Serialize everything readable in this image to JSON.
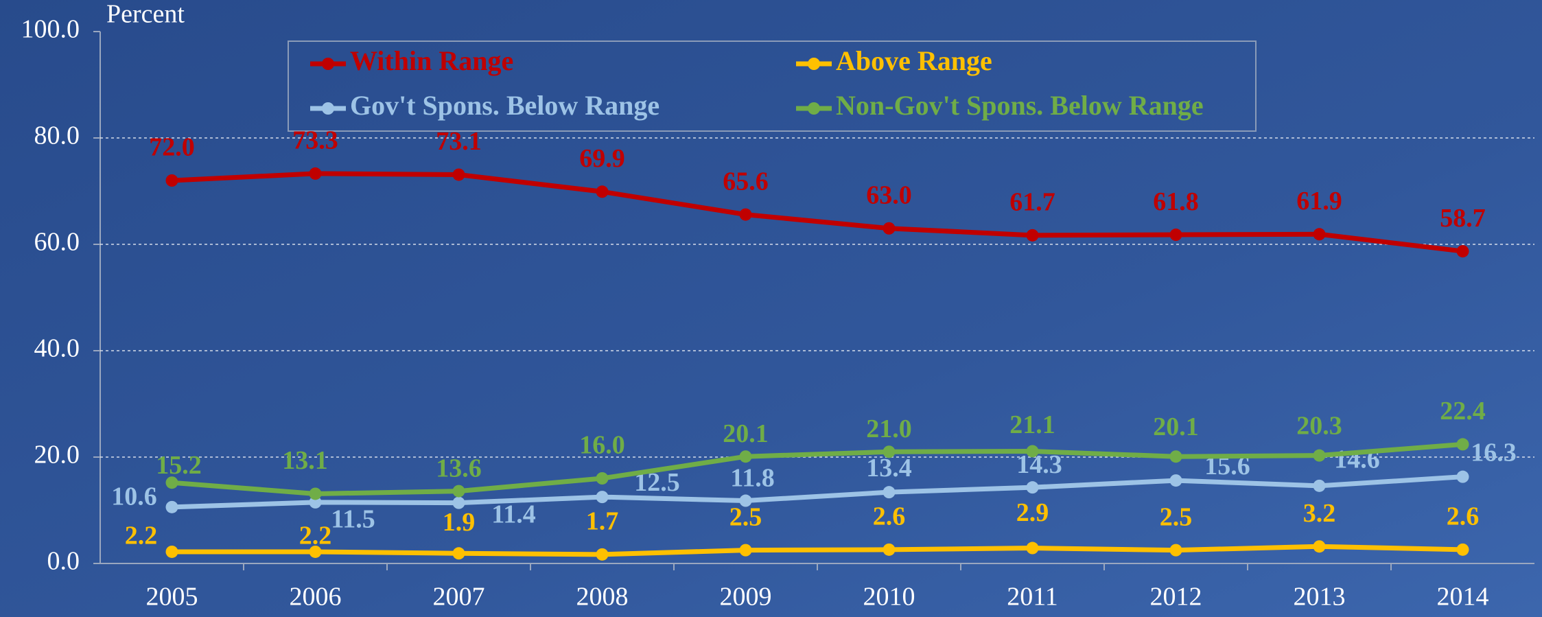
{
  "chart_data": {
    "type": "line",
    "y_axis_label": "Percent",
    "categories": [
      "2005",
      "2006",
      "2007",
      "2008",
      "2009",
      "2010",
      "2011",
      "2012",
      "2013",
      "2014"
    ],
    "series": [
      {
        "name": "Within Range",
        "color": "#c00000",
        "values": [
          72.0,
          73.3,
          73.1,
          69.9,
          65.6,
          63.0,
          61.7,
          61.8,
          61.9,
          58.7
        ],
        "value_labels": [
          "72.0",
          "73.3",
          "73.1",
          "69.9",
          "65.6",
          "63.0",
          "61.7",
          "61.8",
          "61.9",
          "58.7"
        ]
      },
      {
        "name": "Above Range",
        "color": "#ffc000",
        "values": [
          2.2,
          2.2,
          1.9,
          1.7,
          2.5,
          2.6,
          2.9,
          2.5,
          3.2,
          2.6
        ],
        "value_labels": [
          "2.2",
          "2.2",
          "1.9",
          "1.7",
          "2.5",
          "2.6",
          "2.9",
          "2.5",
          "3.2",
          "2.6"
        ]
      },
      {
        "name": "Gov't Spons. Below Range",
        "color": "#9dc3e6",
        "values": [
          10.6,
          11.5,
          11.4,
          12.5,
          11.8,
          13.4,
          14.3,
          15.6,
          14.6,
          16.3
        ],
        "value_labels": [
          "10.6",
          "11.5",
          "11.4",
          "12.5",
          "11.8",
          "13.4",
          "14.3",
          "15.6",
          "14.6",
          "16.3"
        ]
      },
      {
        "name": "Non-Gov't Spons. Below Range",
        "color": "#70ad47",
        "values": [
          15.2,
          13.1,
          13.6,
          16.0,
          20.1,
          21.0,
          21.1,
          20.1,
          20.3,
          22.4
        ],
        "value_labels": [
          "15.2",
          "13.1",
          "13.6",
          "16.0",
          "20.1",
          "21.0",
          "21.1",
          "20.1",
          "20.3",
          "22.4"
        ]
      }
    ],
    "ylim": [
      0,
      100
    ],
    "yticks": [
      {
        "value": 0,
        "label": "0.0"
      },
      {
        "value": 20,
        "label": "20.0"
      },
      {
        "value": 40,
        "label": "40.0"
      },
      {
        "value": 60,
        "label": "60.0"
      },
      {
        "value": 80,
        "label": "80.0"
      },
      {
        "value": 100,
        "label": "100.0"
      }
    ],
    "grid": true
  }
}
